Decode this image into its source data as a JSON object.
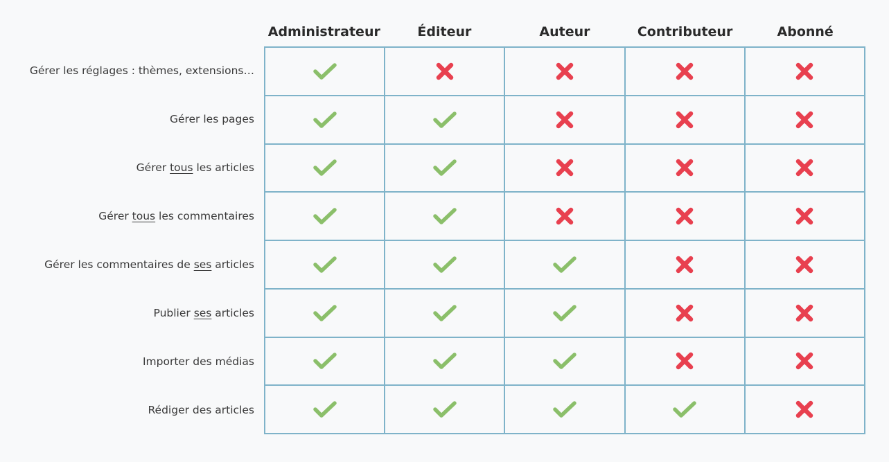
{
  "columns": [
    "Administrateur",
    "Éditeur",
    "Auteur",
    "Contributeur",
    "Abonné"
  ],
  "rows": [
    {
      "segments": [
        {
          "text": "Gérer les réglages : thèmes, extensions…",
          "u": false
        }
      ],
      "values": [
        true,
        false,
        false,
        false,
        false
      ]
    },
    {
      "segments": [
        {
          "text": "Gérer les pages",
          "u": false
        }
      ],
      "values": [
        true,
        true,
        false,
        false,
        false
      ]
    },
    {
      "segments": [
        {
          "text": "Gérer ",
          "u": false
        },
        {
          "text": "tous",
          "u": true
        },
        {
          "text": " les articles",
          "u": false
        }
      ],
      "values": [
        true,
        true,
        false,
        false,
        false
      ]
    },
    {
      "segments": [
        {
          "text": "Gérer ",
          "u": false
        },
        {
          "text": "tous",
          "u": true
        },
        {
          "text": " les commentaires",
          "u": false
        }
      ],
      "values": [
        true,
        true,
        false,
        false,
        false
      ]
    },
    {
      "segments": [
        {
          "text": "Gérer les commentaires de ",
          "u": false
        },
        {
          "text": "ses",
          "u": true
        },
        {
          "text": " articles",
          "u": false
        }
      ],
      "values": [
        true,
        true,
        true,
        false,
        false
      ]
    },
    {
      "segments": [
        {
          "text": "Publier ",
          "u": false
        },
        {
          "text": "ses",
          "u": true
        },
        {
          "text": " articles",
          "u": false
        }
      ],
      "values": [
        true,
        true,
        true,
        false,
        false
      ]
    },
    {
      "segments": [
        {
          "text": "Importer des médias",
          "u": false
        }
      ],
      "values": [
        true,
        true,
        true,
        false,
        false
      ]
    },
    {
      "segments": [
        {
          "text": "Rédiger des articles",
          "u": false
        }
      ],
      "values": [
        true,
        true,
        true,
        true,
        false
      ]
    }
  ],
  "icons": {
    "yes": "check-icon",
    "no": "cross-icon"
  },
  "colors": {
    "check": "#8bbf6a",
    "cross": "#e8404f",
    "grid": "#7fb3c9",
    "background": "#f8f9fa"
  }
}
